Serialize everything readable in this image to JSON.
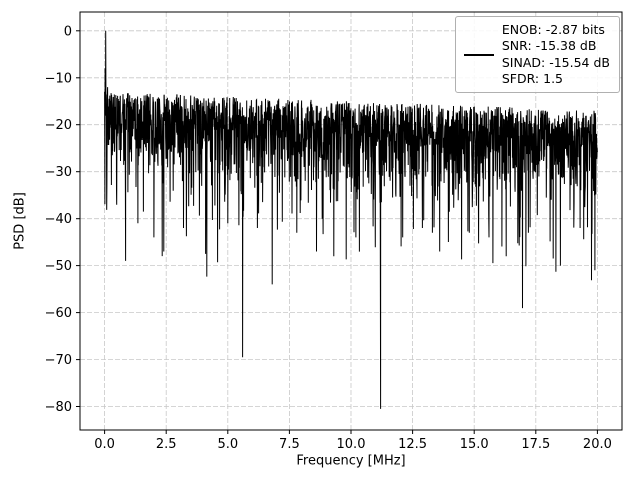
{
  "chart_data": {
    "type": "line",
    "title": "",
    "xlabel": "Frequency [MHz]",
    "ylabel": "PSD [dB]",
    "xlim": [
      -1,
      21
    ],
    "ylim": [
      4,
      -85
    ],
    "xticks": {
      "values": [
        0,
        2.5,
        5,
        7.5,
        10,
        12.5,
        15,
        17.5,
        20
      ],
      "labels": [
        "0.0",
        "2.5",
        "5.0",
        "7.5",
        "10.0",
        "12.5",
        "15.0",
        "17.5",
        "20.0"
      ]
    },
    "yticks": {
      "values": [
        0,
        -10,
        -20,
        -30,
        -40,
        -50,
        -60,
        -70,
        -80
      ],
      "labels": [
        "0",
        "−10",
        "−20",
        "−30",
        "−40",
        "−50",
        "−60",
        "−70",
        "−80"
      ]
    },
    "line": {
      "color": "#000000",
      "width": 1.0
    },
    "grid": {
      "on": true,
      "color": "#c8c8c8",
      "dash": "5 2",
      "width": 0.8
    },
    "legend": {
      "position": "upper right",
      "handle_color": "#000000",
      "lines": [
        "ENOB: -2.87 bits",
        "SNR: -15.38 dB",
        "SINAD: -15.54 dB",
        "SFDR: 1.5"
      ]
    },
    "noise": {
      "x_range": [
        0,
        20
      ],
      "n_points": 2200,
      "seed": 42,
      "top_start": -13,
      "top_slope": -0.2,
      "spread": 9,
      "dip_prob": 0.03,
      "dip_extra_min": 3,
      "dip_extra_max": 25,
      "floor": -82
    },
    "peak_points": [
      [
        0.0,
        -13
      ],
      [
        0.02,
        -8
      ],
      [
        0.045,
        0
      ],
      [
        0.07,
        -20
      ],
      [
        0.09,
        -33
      ],
      [
        0.12,
        -12
      ]
    ],
    "dips": [
      [
        0.85,
        -49
      ],
      [
        1.35,
        -41
      ],
      [
        2.0,
        -44
      ],
      [
        2.4,
        -47
      ],
      [
        3.2,
        -42
      ],
      [
        4.1,
        -47.5
      ],
      [
        5.0,
        -41
      ],
      [
        5.6,
        -69.5
      ],
      [
        6.2,
        -42
      ],
      [
        6.8,
        -54
      ],
      [
        7.8,
        -43
      ],
      [
        8.6,
        -47
      ],
      [
        9.3,
        -48
      ],
      [
        10.2,
        -44
      ],
      [
        11.2,
        -80.5
      ],
      [
        12.1,
        -44
      ],
      [
        12.9,
        -42
      ],
      [
        13.6,
        -47
      ],
      [
        14.8,
        -43
      ],
      [
        15.6,
        -44
      ],
      [
        16.3,
        -48
      ],
      [
        17.2,
        -43
      ],
      [
        18.5,
        -50
      ],
      [
        19.3,
        -42
      ],
      [
        19.9,
        -51
      ]
    ]
  }
}
